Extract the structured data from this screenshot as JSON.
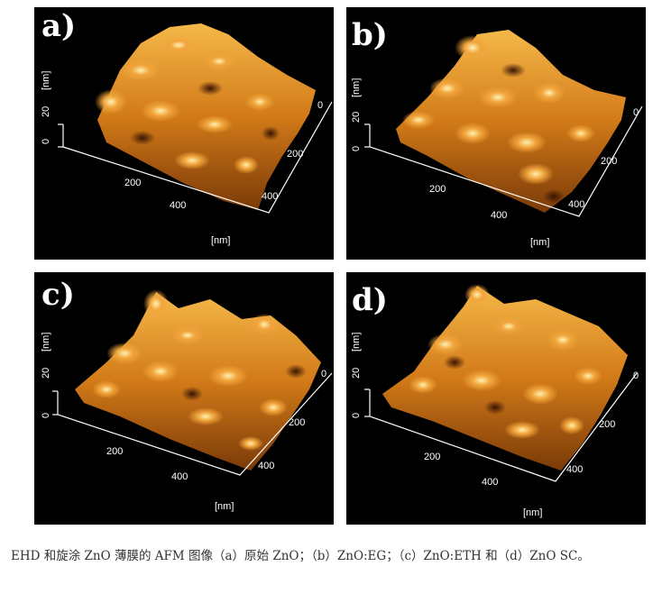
{
  "panels": [
    {
      "label": "a)",
      "z_unit": "[nm]",
      "z_tick_20": "20",
      "z_tick_0": "0",
      "x_unit": "[nm]",
      "x_ticks": [
        "200",
        "400"
      ],
      "y_ticks": [
        "0",
        "200",
        "400"
      ]
    },
    {
      "label": "b)",
      "z_unit": "[nm]",
      "z_tick_20": "20",
      "z_tick_0": "0",
      "x_unit": "[nm]",
      "x_ticks": [
        "200",
        "400"
      ],
      "y_ticks": [
        "0",
        "200",
        "400"
      ]
    },
    {
      "label": "c)",
      "z_unit": "[nm]",
      "z_tick_20": "20",
      "z_tick_0": "0",
      "x_unit": "[nm]",
      "x_ticks": [
        "200",
        "400"
      ],
      "y_ticks": [
        "0",
        "200",
        "400"
      ]
    },
    {
      "label": "d)",
      "z_unit": "[nm]",
      "z_tick_20": "20",
      "z_tick_0": "0",
      "x_unit": "[nm]",
      "x_ticks": [
        "200",
        "400"
      ],
      "y_ticks": [
        "0",
        "200",
        "400"
      ]
    }
  ],
  "caption": "EHD 和旋涂 ZnO 薄膜的 AFM 图像（a）原始 ZnO；（b）ZnO:EG；（c）ZnO:ETH 和（d）ZnO SC。",
  "colors": {
    "background": "#000000",
    "surface_dark": "#5a2a06",
    "surface_mid": "#c46a12",
    "surface_light": "#f3b24a",
    "surface_highlight": "#fde7a0",
    "text": "#ffffff"
  }
}
